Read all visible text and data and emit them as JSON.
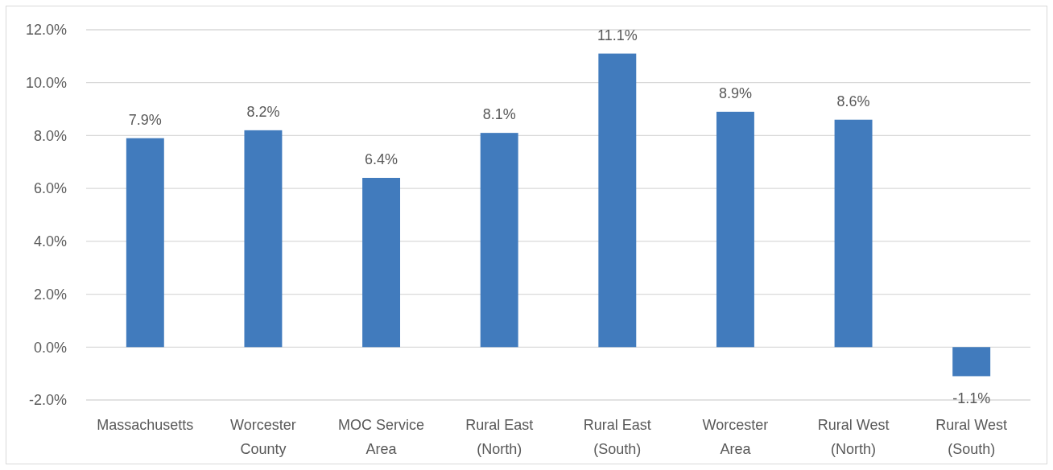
{
  "chart_data": {
    "type": "bar",
    "categories": [
      "Massachusetts",
      "Worcester County",
      "MOC Service Area",
      "Rural East (North)",
      "Rural East (South)",
      "Worcester Area",
      "Rural West (North)",
      "Rural West (South)"
    ],
    "values": [
      7.9,
      8.2,
      6.4,
      8.1,
      11.1,
      8.9,
      8.6,
      -1.1
    ],
    "value_labels": [
      "7.9%",
      "8.2%",
      "6.4%",
      "8.1%",
      "11.1%",
      "8.9%",
      "8.6%",
      "-1.1%"
    ],
    "color": "#417bbd",
    "ylim": [
      -2,
      12
    ],
    "yticks": [
      {
        "value": -2,
        "label": "-2.0%"
      },
      {
        "value": 0,
        "label": "0.0%"
      },
      {
        "value": 2,
        "label": "2.0%"
      },
      {
        "value": 4,
        "label": "4.0%"
      },
      {
        "value": 6,
        "label": "6.0%"
      },
      {
        "value": 8,
        "label": "8.0%"
      },
      {
        "value": 10,
        "label": "10.0%"
      },
      {
        "value": 12,
        "label": "12.0%"
      }
    ],
    "grid": "y"
  }
}
